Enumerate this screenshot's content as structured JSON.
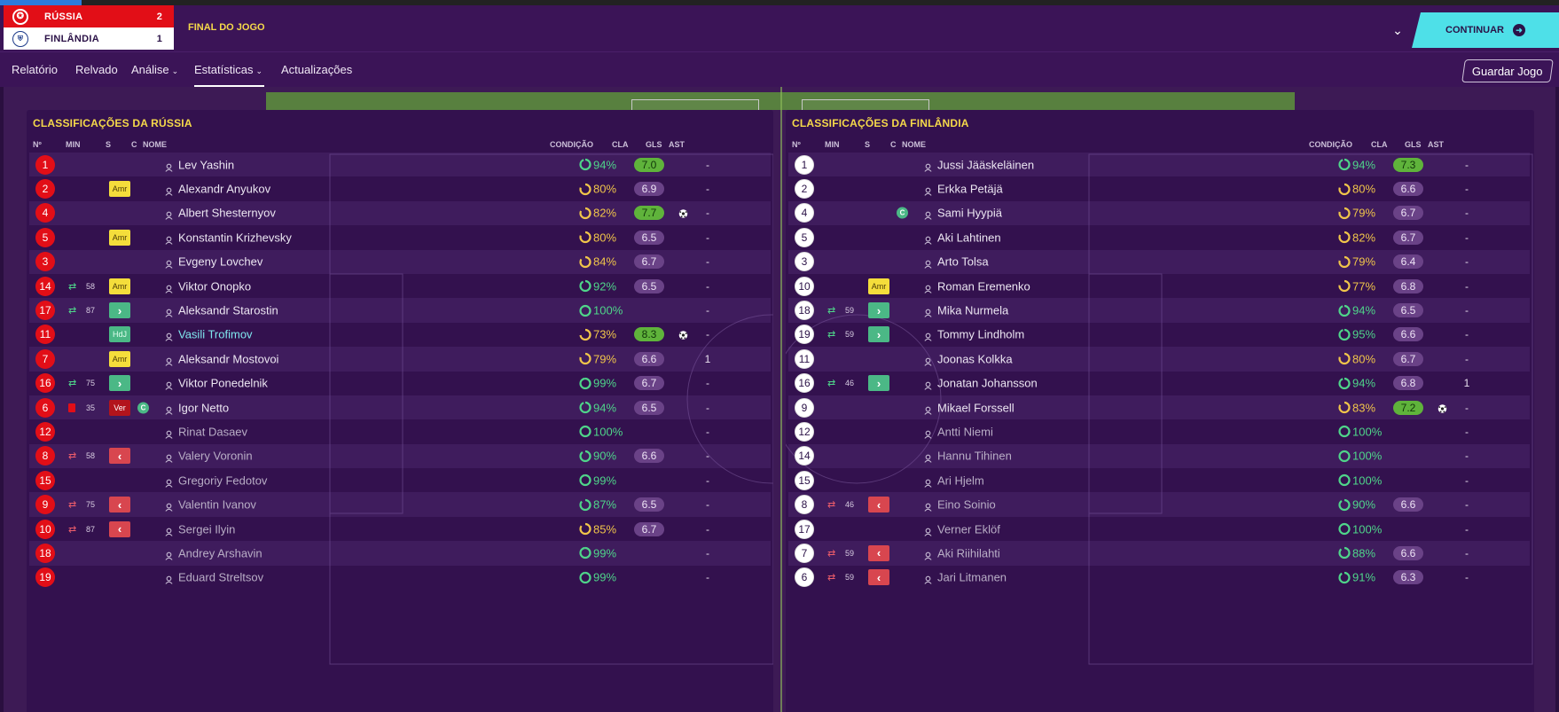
{
  "score": {
    "home": {
      "name": "RÚSSIA",
      "goals": "2"
    },
    "away": {
      "name": "FINLÂNDIA",
      "goals": "1"
    },
    "status": "FINAL DO JOGO"
  },
  "actions": {
    "continue": "CONTINUAR",
    "save": "Guardar Jogo"
  },
  "nav": [
    {
      "label": "Relatório",
      "dropdown": false,
      "active": false
    },
    {
      "label": "Relvado",
      "dropdown": false,
      "active": false
    },
    {
      "label": "Análise",
      "dropdown": true,
      "active": false
    },
    {
      "label": "Estatísticas",
      "dropdown": true,
      "active": true
    },
    {
      "label": "Actualizações",
      "dropdown": false,
      "active": false
    }
  ],
  "columns": {
    "num": "Nº",
    "min": "MIN",
    "s": "S",
    "c": "C",
    "name": "NOME",
    "condition": "CONDIÇÃO",
    "rating": "CLA",
    "goals": "GLS",
    "assists": "AST"
  },
  "colors": {
    "home": "#e20e17",
    "away": "#ffffff",
    "accent": "#4ee0e8",
    "title": "#f5d94a",
    "cond_good": "#4fd58a",
    "cond_mid": "#f0c54a"
  },
  "teams": [
    {
      "title": "CLASSIFICAÇÕES DA RÚSSIA",
      "players": [
        {
          "num": "1",
          "sub": "",
          "min": "",
          "badge": "",
          "capt": false,
          "name": "Lev Yashin",
          "style": "",
          "cond": "94%",
          "condLevel": 0.94,
          "rating": "7.0",
          "ratingHigh": true,
          "goal": false,
          "ast": "-"
        },
        {
          "num": "2",
          "sub": "",
          "min": "",
          "badge": "Amr",
          "capt": false,
          "name": "Alexandr Anyukov",
          "style": "",
          "cond": "80%",
          "condLevel": 0.8,
          "rating": "6.9",
          "ratingHigh": false,
          "goal": false,
          "ast": "-"
        },
        {
          "num": "4",
          "sub": "",
          "min": "",
          "badge": "",
          "capt": false,
          "name": "Albert Shesternyov",
          "style": "",
          "cond": "82%",
          "condLevel": 0.82,
          "rating": "7.7",
          "ratingHigh": true,
          "goal": true,
          "ast": "-"
        },
        {
          "num": "5",
          "sub": "",
          "min": "",
          "badge": "Amr",
          "capt": false,
          "name": "Konstantin Krizhevsky",
          "style": "",
          "cond": "80%",
          "condLevel": 0.8,
          "rating": "6.5",
          "ratingHigh": false,
          "goal": false,
          "ast": "-"
        },
        {
          "num": "3",
          "sub": "",
          "min": "",
          "badge": "",
          "capt": false,
          "name": "Evgeny Lovchev",
          "style": "",
          "cond": "84%",
          "condLevel": 0.84,
          "rating": "6.7",
          "ratingHigh": false,
          "goal": false,
          "ast": "-"
        },
        {
          "num": "14",
          "sub": "in",
          "min": "58",
          "badge": "Amr",
          "capt": false,
          "name": "Viktor Onopko",
          "style": "",
          "cond": "92%",
          "condLevel": 0.92,
          "rating": "6.5",
          "ratingHigh": false,
          "goal": false,
          "ast": "-"
        },
        {
          "num": "17",
          "sub": "in",
          "min": "87",
          "badge": "in",
          "capt": false,
          "name": "Aleksandr Starostin",
          "style": "",
          "cond": "100%",
          "condLevel": 1.0,
          "rating": "",
          "ratingHigh": false,
          "goal": false,
          "ast": "-"
        },
        {
          "num": "11",
          "sub": "",
          "min": "",
          "badge": "HdJ",
          "capt": false,
          "name": "Vasili Trofimov",
          "style": "motm",
          "cond": "73%",
          "condLevel": 0.73,
          "rating": "8.3",
          "ratingHigh": true,
          "goal": true,
          "ast": "-"
        },
        {
          "num": "7",
          "sub": "",
          "min": "",
          "badge": "Amr",
          "capt": false,
          "name": "Aleksandr Mostovoi",
          "style": "",
          "cond": "79%",
          "condLevel": 0.79,
          "rating": "6.6",
          "ratingHigh": false,
          "goal": false,
          "ast": "1"
        },
        {
          "num": "16",
          "sub": "in",
          "min": "75",
          "badge": "in",
          "capt": false,
          "name": "Viktor Ponedelnik",
          "style": "",
          "cond": "99%",
          "condLevel": 0.99,
          "rating": "6.7",
          "ratingHigh": false,
          "goal": false,
          "ast": "-"
        },
        {
          "num": "6",
          "sub": "card",
          "min": "35",
          "badge": "Ver",
          "capt": true,
          "name": "Igor Netto",
          "style": "",
          "cond": "94%",
          "condLevel": 0.94,
          "rating": "6.5",
          "ratingHigh": false,
          "goal": false,
          "ast": "-"
        },
        {
          "num": "12",
          "sub": "",
          "min": "",
          "badge": "",
          "capt": false,
          "name": "Rinat Dasaev",
          "style": "bench",
          "cond": "100%",
          "condLevel": 1.0,
          "rating": "",
          "ratingHigh": false,
          "goal": false,
          "ast": "-"
        },
        {
          "num": "8",
          "sub": "out",
          "min": "58",
          "badge": "out",
          "capt": false,
          "name": "Valery Voronin",
          "style": "bench",
          "cond": "90%",
          "condLevel": 0.9,
          "rating": "6.6",
          "ratingHigh": false,
          "goal": false,
          "ast": "-"
        },
        {
          "num": "15",
          "sub": "",
          "min": "",
          "badge": "",
          "capt": false,
          "name": "Gregoriy Fedotov",
          "style": "bench",
          "cond": "99%",
          "condLevel": 0.99,
          "rating": "",
          "ratingHigh": false,
          "goal": false,
          "ast": "-"
        },
        {
          "num": "9",
          "sub": "out",
          "min": "75",
          "badge": "out",
          "capt": false,
          "name": "Valentin Ivanov",
          "style": "bench",
          "cond": "87%",
          "condLevel": 0.87,
          "rating": "6.5",
          "ratingHigh": false,
          "goal": false,
          "ast": "-"
        },
        {
          "num": "10",
          "sub": "out",
          "min": "87",
          "badge": "out",
          "capt": false,
          "name": "Sergei Ilyin",
          "style": "bench",
          "cond": "85%",
          "condLevel": 0.85,
          "rating": "6.7",
          "ratingHigh": false,
          "goal": false,
          "ast": "-"
        },
        {
          "num": "18",
          "sub": "",
          "min": "",
          "badge": "",
          "capt": false,
          "name": "Andrey Arshavin",
          "style": "bench",
          "cond": "99%",
          "condLevel": 0.99,
          "rating": "",
          "ratingHigh": false,
          "goal": false,
          "ast": "-"
        },
        {
          "num": "19",
          "sub": "",
          "min": "",
          "badge": "",
          "capt": false,
          "name": "Eduard Streltsov",
          "style": "bench",
          "cond": "99%",
          "condLevel": 0.99,
          "rating": "",
          "ratingHigh": false,
          "goal": false,
          "ast": "-"
        }
      ]
    },
    {
      "title": "CLASSIFICAÇÕES DA FINLÂNDIA",
      "players": [
        {
          "num": "1",
          "sub": "",
          "min": "",
          "badge": "",
          "capt": false,
          "name": "Jussi Jääskeläinen",
          "style": "",
          "cond": "94%",
          "condLevel": 0.94,
          "rating": "7.3",
          "ratingHigh": true,
          "goal": false,
          "ast": "-"
        },
        {
          "num": "2",
          "sub": "",
          "min": "",
          "badge": "",
          "capt": false,
          "name": "Erkka Petäjä",
          "style": "",
          "cond": "80%",
          "condLevel": 0.8,
          "rating": "6.6",
          "ratingHigh": false,
          "goal": false,
          "ast": "-"
        },
        {
          "num": "4",
          "sub": "",
          "min": "",
          "badge": "",
          "capt": true,
          "name": "Sami Hyypiä",
          "style": "",
          "cond": "79%",
          "condLevel": 0.79,
          "rating": "6.7",
          "ratingHigh": false,
          "goal": false,
          "ast": "-"
        },
        {
          "num": "5",
          "sub": "",
          "min": "",
          "badge": "",
          "capt": false,
          "name": "Aki Lahtinen",
          "style": "",
          "cond": "82%",
          "condLevel": 0.82,
          "rating": "6.7",
          "ratingHigh": false,
          "goal": false,
          "ast": "-"
        },
        {
          "num": "3",
          "sub": "",
          "min": "",
          "badge": "",
          "capt": false,
          "name": "Arto Tolsa",
          "style": "",
          "cond": "79%",
          "condLevel": 0.79,
          "rating": "6.4",
          "ratingHigh": false,
          "goal": false,
          "ast": "-"
        },
        {
          "num": "10",
          "sub": "",
          "min": "",
          "badge": "Amr",
          "capt": false,
          "name": "Roman Eremenko",
          "style": "",
          "cond": "77%",
          "condLevel": 0.77,
          "rating": "6.8",
          "ratingHigh": false,
          "goal": false,
          "ast": "-"
        },
        {
          "num": "18",
          "sub": "in",
          "min": "59",
          "badge": "in",
          "capt": false,
          "name": "Mika Nurmela",
          "style": "",
          "cond": "94%",
          "condLevel": 0.94,
          "rating": "6.5",
          "ratingHigh": false,
          "goal": false,
          "ast": "-"
        },
        {
          "num": "19",
          "sub": "in",
          "min": "59",
          "badge": "in",
          "capt": false,
          "name": "Tommy Lindholm",
          "style": "",
          "cond": "95%",
          "condLevel": 0.95,
          "rating": "6.6",
          "ratingHigh": false,
          "goal": false,
          "ast": "-"
        },
        {
          "num": "11",
          "sub": "",
          "min": "",
          "badge": "",
          "capt": false,
          "name": "Joonas Kolkka",
          "style": "",
          "cond": "80%",
          "condLevel": 0.8,
          "rating": "6.7",
          "ratingHigh": false,
          "goal": false,
          "ast": "-"
        },
        {
          "num": "16",
          "sub": "in",
          "min": "46",
          "badge": "in",
          "capt": false,
          "name": "Jonatan Johansson",
          "style": "",
          "cond": "94%",
          "condLevel": 0.94,
          "rating": "6.8",
          "ratingHigh": false,
          "goal": false,
          "ast": "1"
        },
        {
          "num": "9",
          "sub": "",
          "min": "",
          "badge": "",
          "capt": false,
          "name": "Mikael Forssell",
          "style": "",
          "cond": "83%",
          "condLevel": 0.83,
          "rating": "7.2",
          "ratingHigh": true,
          "goal": true,
          "ast": "-"
        },
        {
          "num": "12",
          "sub": "",
          "min": "",
          "badge": "",
          "capt": false,
          "name": "Antti Niemi",
          "style": "bench",
          "cond": "100%",
          "condLevel": 1.0,
          "rating": "",
          "ratingHigh": false,
          "goal": false,
          "ast": "-"
        },
        {
          "num": "14",
          "sub": "",
          "min": "",
          "badge": "",
          "capt": false,
          "name": "Hannu Tihinen",
          "style": "bench",
          "cond": "100%",
          "condLevel": 1.0,
          "rating": "",
          "ratingHigh": false,
          "goal": false,
          "ast": "-"
        },
        {
          "num": "15",
          "sub": "",
          "min": "",
          "badge": "",
          "capt": false,
          "name": "Ari Hjelm",
          "style": "bench",
          "cond": "100%",
          "condLevel": 1.0,
          "rating": "",
          "ratingHigh": false,
          "goal": false,
          "ast": "-"
        },
        {
          "num": "8",
          "sub": "out",
          "min": "46",
          "badge": "out",
          "capt": false,
          "name": "Eino Soinio",
          "style": "bench",
          "cond": "90%",
          "condLevel": 0.9,
          "rating": "6.6",
          "ratingHigh": false,
          "goal": false,
          "ast": "-"
        },
        {
          "num": "17",
          "sub": "",
          "min": "",
          "badge": "",
          "capt": false,
          "name": "Verner Eklöf",
          "style": "bench",
          "cond": "100%",
          "condLevel": 1.0,
          "rating": "",
          "ratingHigh": false,
          "goal": false,
          "ast": "-"
        },
        {
          "num": "7",
          "sub": "out",
          "min": "59",
          "badge": "out",
          "capt": false,
          "name": "Aki Riihilahti",
          "style": "bench",
          "cond": "88%",
          "condLevel": 0.88,
          "rating": "6.6",
          "ratingHigh": false,
          "goal": false,
          "ast": "-"
        },
        {
          "num": "6",
          "sub": "out",
          "min": "59",
          "badge": "out",
          "capt": false,
          "name": "Jari Litmanen",
          "style": "bench",
          "cond": "91%",
          "condLevel": 0.91,
          "rating": "6.3",
          "ratingHigh": false,
          "goal": false,
          "ast": "-"
        }
      ]
    }
  ]
}
